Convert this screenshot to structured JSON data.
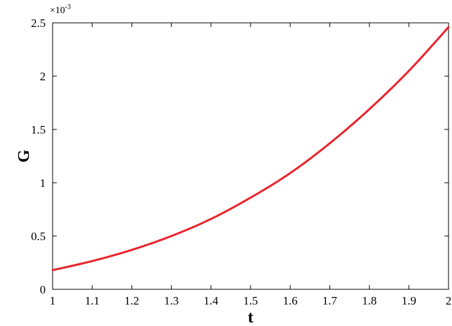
{
  "chart_data": {
    "type": "line",
    "title": "",
    "xlabel": "t",
    "ylabel": "G",
    "xlim": [
      1,
      2
    ],
    "ylim": [
      0,
      0.0025
    ],
    "y_scale_factor_label": {
      "base": "×10",
      "exponent": "-3"
    },
    "x_ticks": [
      1,
      1.1,
      1.2,
      1.3,
      1.4,
      1.5,
      1.6,
      1.7,
      1.8,
      1.9,
      2
    ],
    "x_tick_labels": [
      "1",
      "1.1",
      "1.2",
      "1.3",
      "1.4",
      "1.5",
      "1.6",
      "1.7",
      "1.8",
      "1.9",
      "2"
    ],
    "y_ticks": [
      0,
      0.0005,
      0.001,
      0.0015,
      0.002,
      0.0025
    ],
    "y_tick_labels": [
      "0",
      "0.5",
      "1",
      "1.5",
      "2",
      "2.5"
    ],
    "grid": false,
    "series": [
      {
        "color": "#e8242c",
        "x": [
          1.0,
          1.1,
          1.2,
          1.3,
          1.4,
          1.5,
          1.6,
          1.7,
          1.8,
          1.9,
          2.0
        ],
        "y": [
          0.00018,
          0.000265,
          0.00037,
          0.0005,
          0.00066,
          0.00086,
          0.00109,
          0.00137,
          0.00169,
          0.00205,
          0.00246
        ]
      }
    ]
  }
}
